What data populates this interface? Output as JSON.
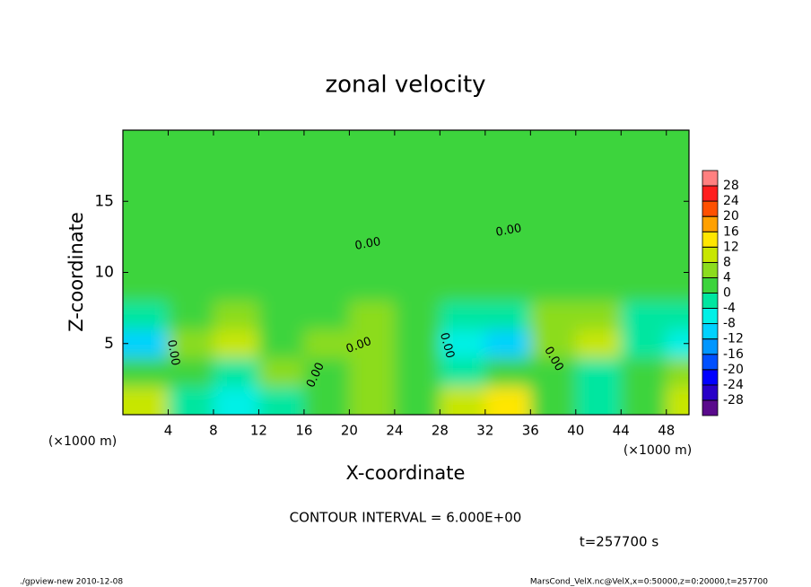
{
  "chart_data": {
    "type": "contour",
    "title": "zonal velocity",
    "x_label": "X-coordinate",
    "y_label": "Z-coordinate",
    "x_unit": "(×1000 m)",
    "xlim": [
      0,
      50
    ],
    "ylim": [
      0,
      20
    ],
    "xticks": [
      4,
      8,
      12,
      16,
      20,
      24,
      28,
      32,
      36,
      40,
      44,
      48
    ],
    "yticks": [
      5,
      10,
      15
    ],
    "x": [
      2,
      6,
      10,
      14,
      18,
      22,
      26,
      30,
      34,
      38,
      42,
      46,
      50
    ],
    "y": [
      1,
      3,
      5,
      7,
      9,
      11,
      13,
      15,
      17,
      19
    ],
    "z": [
      [
        10,
        -4,
        -6,
        -2,
        2,
        4,
        2,
        8,
        12,
        2,
        -4,
        0,
        8
      ],
      [
        2,
        2,
        -2,
        6,
        2,
        4,
        0,
        -2,
        2,
        0,
        -2,
        2,
        4
      ],
      [
        -10,
        4,
        8,
        2,
        6,
        4,
        2,
        -8,
        -10,
        4,
        8,
        -4,
        -8
      ],
      [
        -4,
        2,
        4,
        0,
        2,
        4,
        2,
        -2,
        -4,
        4,
        6,
        -2,
        -4
      ],
      [
        2,
        2,
        2,
        2,
        2,
        2,
        2,
        0,
        2,
        2,
        2,
        2,
        2
      ],
      [
        2,
        2,
        2,
        0,
        2,
        2,
        0,
        0,
        0,
        0,
        0,
        0,
        2
      ],
      [
        0,
        0,
        0,
        0,
        0,
        0,
        0,
        2,
        2,
        2,
        2,
        2,
        0
      ],
      [
        0,
        0,
        0,
        0,
        0,
        0,
        0,
        0,
        2,
        2,
        2,
        2,
        2
      ],
      [
        0,
        0,
        0,
        0,
        0,
        0,
        0,
        0,
        2,
        2,
        2,
        2,
        0
      ],
      [
        0,
        0,
        0,
        0,
        0,
        0,
        0,
        0,
        0,
        2,
        2,
        0,
        0
      ]
    ],
    "colorbar_ticks": [
      -28,
      -24,
      -20,
      -16,
      -12,
      -8,
      -4,
      0,
      4,
      8,
      12,
      16,
      20,
      24,
      28
    ],
    "colorbar_colors": [
      "#5a0a8c",
      "#2800c8",
      "#0000ff",
      "#0050ff",
      "#0096ff",
      "#00d2ff",
      "#00f0e6",
      "#00e6a0",
      "#3cd43c",
      "#8cdc1e",
      "#c8e600",
      "#ffe600",
      "#ffa000",
      "#ff5000",
      "#ff1e1e",
      "#ff8080"
    ],
    "contour_label": "0.00",
    "contour_interval_text": "CONTOUR INTERVAL = 6.000E+00",
    "time_text": "t=257700 s",
    "footer_left": "./gpview-new   2010-12-08",
    "footer_right": "MarsCond_VelX.nc@VelX,x=0:50000,z=0:20000,t=257700"
  }
}
